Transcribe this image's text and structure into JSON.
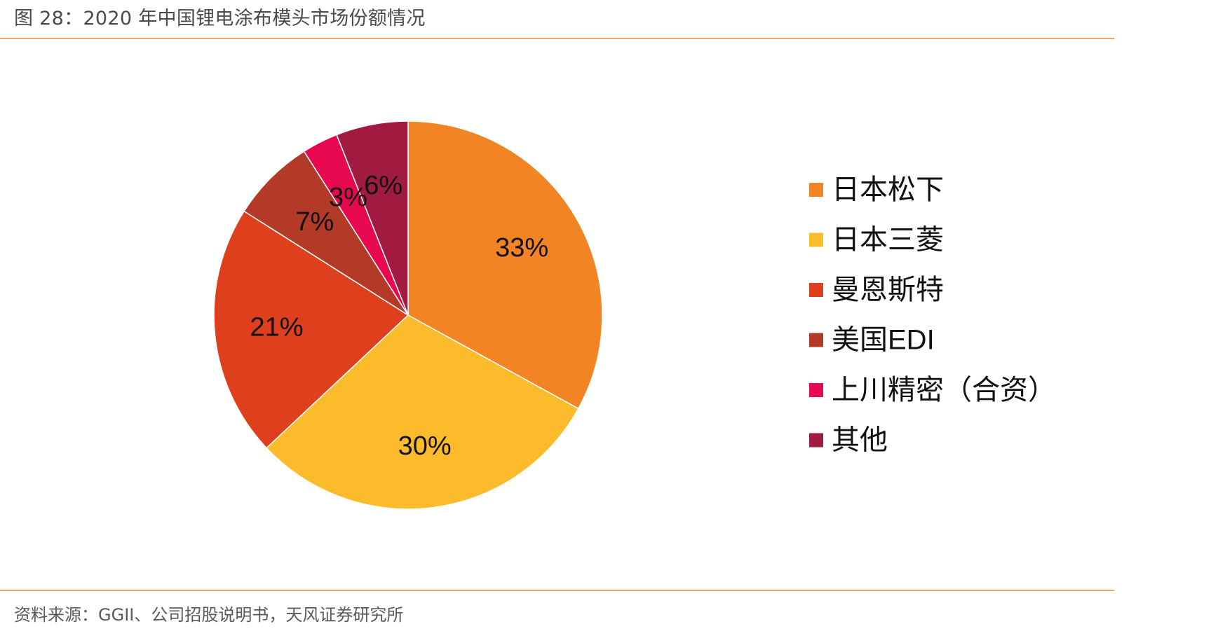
{
  "title": "图 28：2020 年中国锂电涂布模头市场份额情况",
  "source": "资料来源：GGII、公司招股说明书，天风证券研究所",
  "colors": {
    "rule": "#f0a46a",
    "title_text": "#4a4a4a",
    "source_text": "#5a5a5a"
  },
  "chart_data": {
    "type": "pie",
    "title": "",
    "legend_position": "right",
    "slices": [
      {
        "label": "日本松下",
        "value": 33,
        "display": "33%",
        "color": "#F28424"
      },
      {
        "label": "日本三菱",
        "value": 30,
        "display": "30%",
        "color": "#FBBB2B"
      },
      {
        "label": "曼恩斯特",
        "value": 21,
        "display": "21%",
        "color": "#DE3F1C"
      },
      {
        "label": "美国EDI",
        "value": 7,
        "display": "7%",
        "color": "#B23A26"
      },
      {
        "label": "上川精密（合资）",
        "value": 3,
        "display": "3%",
        "color": "#E8084F"
      },
      {
        "label": "其他",
        "value": 6,
        "display": "6%",
        "color": "#A01B3F"
      }
    ]
  }
}
